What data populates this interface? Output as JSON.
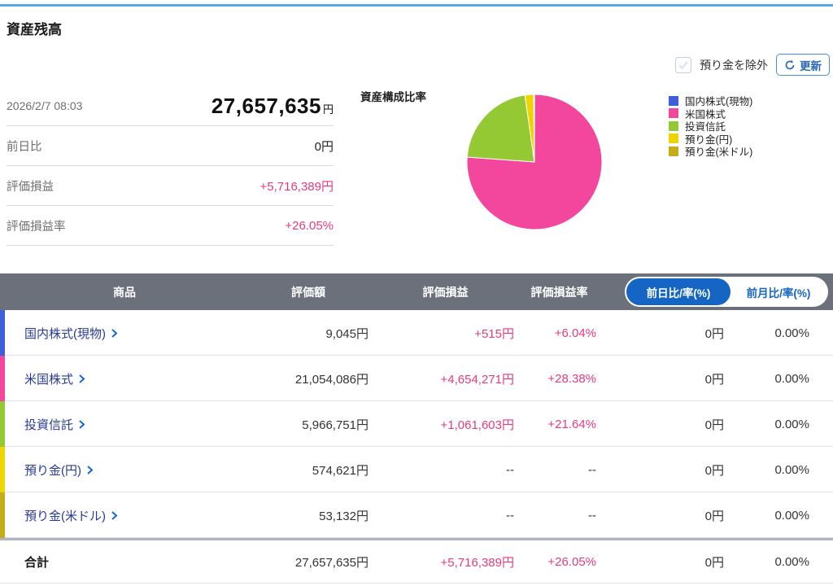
{
  "page": {
    "title": "資産残高"
  },
  "controls": {
    "exclude_checkbox_label": "預り金を除外",
    "refresh_button_label": "更新"
  },
  "summary": {
    "timestamp": "2026/2/7 08:03",
    "total_value": "27,657,635",
    "currency_suffix": "円",
    "rows": [
      {
        "label": "前日比",
        "value": "0円"
      },
      {
        "label": "評価損益",
        "value": "+5,716,389円"
      },
      {
        "label": "評価損益率",
        "value": "+26.05%"
      }
    ]
  },
  "chart_data": {
    "type": "pie",
    "title": "資産構成比率",
    "legend_position": "right",
    "slices": [
      {
        "label": "国内株式(現物)",
        "value": 9045,
        "percent": 0.03,
        "color": "#3d5fdb"
      },
      {
        "label": "米国株式",
        "value": 21054086,
        "percent": 76.12,
        "color": "#f2479d"
      },
      {
        "label": "投資信託",
        "value": 5966751,
        "percent": 21.57,
        "color": "#94c933"
      },
      {
        "label": "預り金(円)",
        "value": 574621,
        "percent": 2.08,
        "color": "#f0d400"
      },
      {
        "label": "預り金(米ドル)",
        "value": 53132,
        "percent": 0.19,
        "color": "#c4ad17"
      }
    ]
  },
  "table": {
    "headers": {
      "product": "商品",
      "valuation": "評価額",
      "gain": "評価損益",
      "gain_rate": "評価損益率"
    },
    "toggle": {
      "active": "前日比/率(%)",
      "inactive": "前月比/率(%)"
    },
    "rows": [
      {
        "product": "国内株式(現物)",
        "valuation": "9,045円",
        "gain": "+515円",
        "gain_rate": "+6.04%",
        "day_change": "0円",
        "day_rate": "0.00%"
      },
      {
        "product": "米国株式",
        "valuation": "21,054,086円",
        "gain": "+4,654,271円",
        "gain_rate": "+28.38%",
        "day_change": "0円",
        "day_rate": "0.00%"
      },
      {
        "product": "投資信託",
        "valuation": "5,966,751円",
        "gain": "+1,061,603円",
        "gain_rate": "+21.64%",
        "day_change": "0円",
        "day_rate": "0.00%"
      },
      {
        "product": "預り金(円)",
        "valuation": "574,621円",
        "gain": "--",
        "gain_rate": "--",
        "day_change": "0円",
        "day_rate": "0.00%"
      },
      {
        "product": "預り金(米ドル)",
        "valuation": "53,132円",
        "gain": "--",
        "gain_rate": "--",
        "day_change": "0円",
        "day_rate": "0.00%"
      }
    ],
    "total": {
      "label": "合計",
      "valuation": "27,657,635円",
      "gain": "+5,716,389円",
      "gain_rate": "+26.05%",
      "day_change": "0円",
      "day_rate": "0.00%"
    }
  }
}
